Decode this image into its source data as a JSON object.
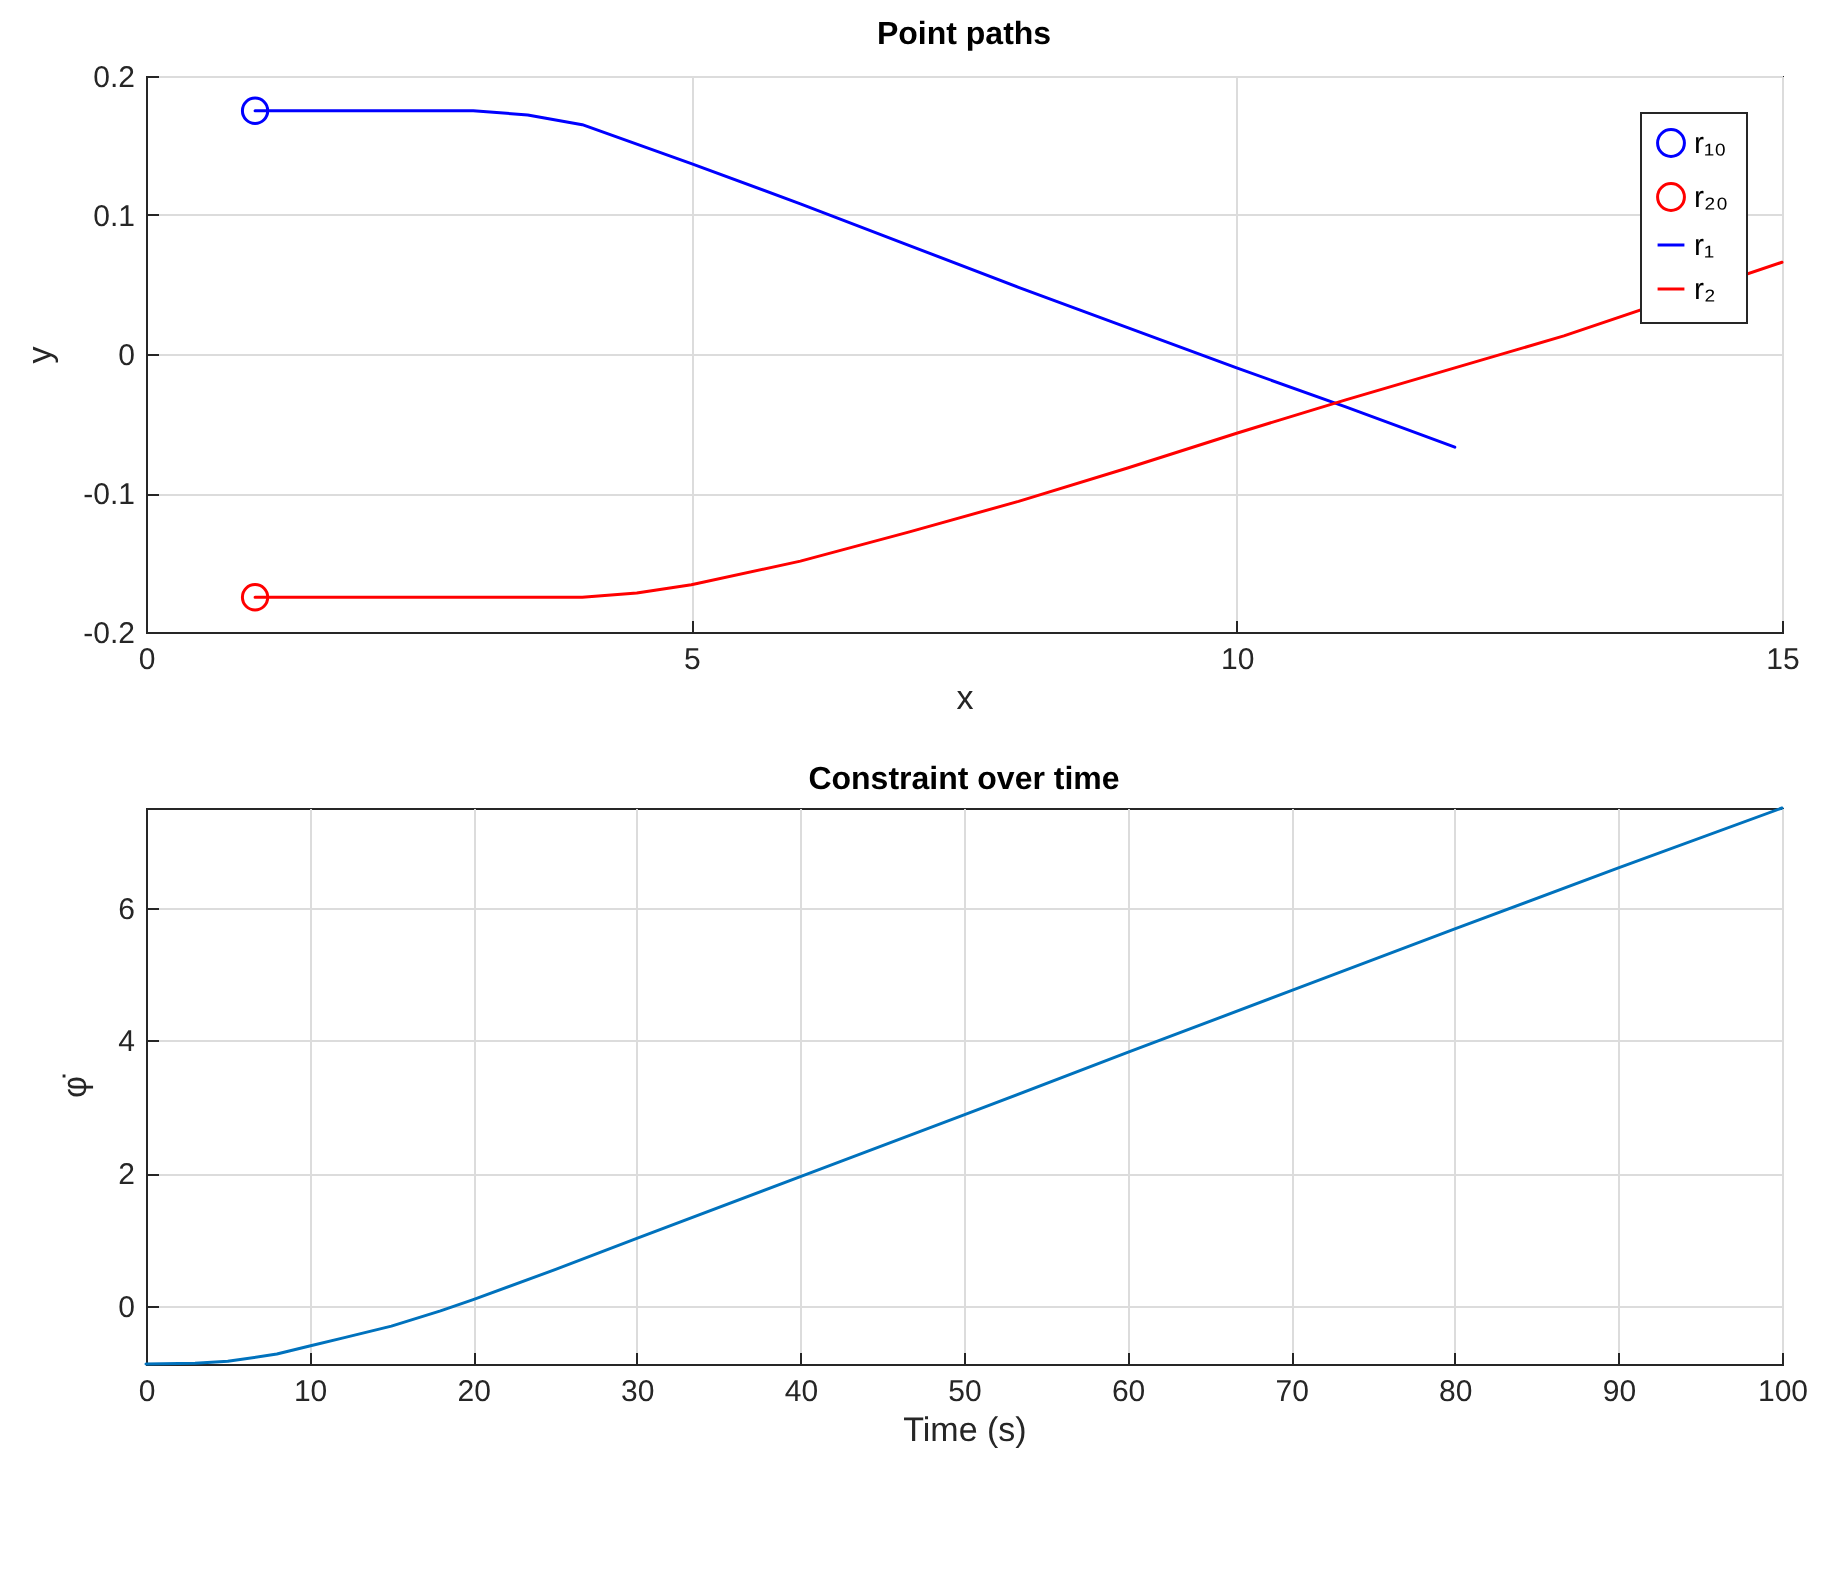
{
  "chart_data": [
    {
      "type": "line",
      "title": "Point paths",
      "xlabel": "x",
      "ylabel": "y",
      "xlim": [
        0,
        15
      ],
      "ylim": [
        -0.2,
        0.2
      ],
      "xticks": [
        0,
        5,
        10,
        15
      ],
      "yticks": [
        -0.2,
        -0.1,
        0,
        0.1,
        0.2
      ],
      "grid": true,
      "legend": "top right",
      "series": [
        {
          "name": "r₁₀",
          "type": "scatter",
          "marker": "circle",
          "color": "#0000ff",
          "x": [
            1
          ],
          "values": [
            0.175
          ]
        },
        {
          "name": "r₂₀",
          "type": "scatter",
          "marker": "circle",
          "color": "#ff0000",
          "x": [
            1
          ],
          "values": [
            -0.175
          ]
        },
        {
          "name": "r₁",
          "type": "line",
          "color": "#0000ff",
          "x": [
            1,
            2,
            3,
            3.5,
            4,
            5,
            6,
            7,
            8,
            9,
            10,
            11,
            12
          ],
          "values": [
            0.175,
            0.175,
            0.175,
            0.172,
            0.165,
            0.137,
            0.108,
            0.078,
            0.048,
            0.019,
            -0.01,
            -0.038,
            -0.067
          ]
        },
        {
          "name": "r₂",
          "type": "line",
          "color": "#ff0000",
          "x": [
            1,
            2,
            3,
            4,
            4.5,
            5,
            6,
            7,
            8,
            9,
            10,
            11,
            12,
            13,
            15
          ],
          "values": [
            -0.175,
            -0.175,
            -0.175,
            -0.175,
            -0.172,
            -0.166,
            -0.149,
            -0.128,
            -0.106,
            -0.082,
            -0.057,
            -0.033,
            -0.01,
            0.013,
            0.066
          ]
        }
      ]
    },
    {
      "type": "line",
      "title": "Constraint over time",
      "xlabel": "Time (s)",
      "ylabel": "φ̇",
      "xlim": [
        0,
        100
      ],
      "ylim": [
        -0.87,
        7.5
      ],
      "xticks": [
        0,
        10,
        20,
        30,
        40,
        50,
        60,
        70,
        80,
        90,
        100
      ],
      "yticks": [
        0,
        2,
        4,
        6
      ],
      "grid": true,
      "series": [
        {
          "color": "#0072bd",
          "x": [
            0,
            3,
            5,
            8,
            10,
            12,
            15,
            18,
            20,
            25,
            30,
            40,
            50,
            60,
            70,
            80,
            90,
            100
          ],
          "values": [
            -0.87,
            -0.86,
            -0.83,
            -0.72,
            -0.6,
            -0.48,
            -0.3,
            -0.07,
            0.1,
            0.55,
            1.02,
            1.95,
            2.88,
            3.82,
            4.75,
            5.68,
            6.6,
            7.5
          ]
        }
      ]
    }
  ]
}
